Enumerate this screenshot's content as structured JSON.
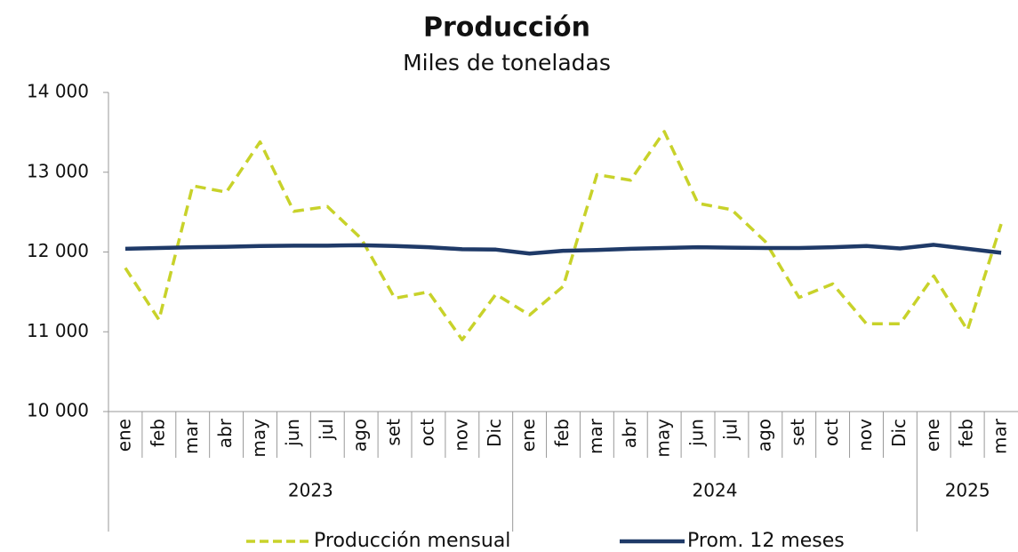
{
  "chart_data": {
    "type": "line",
    "title": "Producción",
    "subtitle": "Miles de toneladas",
    "categories": [
      "ene",
      "feb",
      "mar",
      "abr",
      "may",
      "jun",
      "jul",
      "ago",
      "set",
      "oct",
      "nov",
      "Dic",
      "ene",
      "feb",
      "mar",
      "abr",
      "may",
      "jun",
      "jul",
      "ago",
      "set",
      "oct",
      "nov",
      "Dic",
      "ene",
      "feb",
      "mar"
    ],
    "years": [
      "2023",
      "2023",
      "2023",
      "2023",
      "2023",
      "2023",
      "2023",
      "2023",
      "2023",
      "2023",
      "2023",
      "2023",
      "2024",
      "2024",
      "2024",
      "2024",
      "2024",
      "2024",
      "2024",
      "2024",
      "2024",
      "2024",
      "2024",
      "2024",
      "2025",
      "2025",
      "2025"
    ],
    "series": [
      {
        "name": "Producción mensual",
        "color": "#c8d22a",
        "dash": true,
        "values": [
          11800,
          11150,
          12830,
          12750,
          13380,
          12510,
          12570,
          12170,
          11420,
          11500,
          10900,
          11470,
          11210,
          11570,
          12970,
          12900,
          13510,
          12610,
          12530,
          12130,
          11430,
          11600,
          11100,
          11100,
          11700,
          11020,
          12350
        ]
      },
      {
        "name": "Prom. 12 meses",
        "color": "#1f3a68",
        "dash": false,
        "values": [
          12040,
          12050,
          12060,
          12065,
          12075,
          12080,
          12080,
          12085,
          12075,
          12060,
          12035,
          12030,
          11980,
          12015,
          12025,
          12040,
          12050,
          12060,
          12055,
          12050,
          12050,
          12060,
          12075,
          12045,
          12090,
          12040,
          11990
        ]
      }
    ],
    "ylim": [
      10000,
      14000
    ],
    "yticks": [
      {
        "value": 10000,
        "label": "10 000"
      },
      {
        "value": 11000,
        "label": "11 000"
      },
      {
        "value": 12000,
        "label": "12 000"
      },
      {
        "value": 13000,
        "label": "13 000"
      },
      {
        "value": 14000,
        "label": "14 000"
      }
    ],
    "legend": "bottom"
  }
}
